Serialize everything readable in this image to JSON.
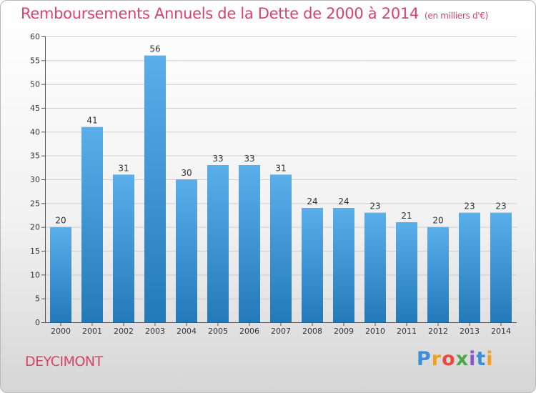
{
  "header": {
    "title": "Remboursements Annuels de la Dette de 2000 à 2014",
    "unit": "(en milliers d'€)"
  },
  "footer": {
    "city": "DEYCIMONT",
    "logo": "Proxiti"
  },
  "colors": {
    "title": "#d9436b",
    "bar_top": "#5aaeea",
    "bar_bottom": "#2479b8"
  },
  "chart_data": {
    "type": "bar",
    "title": "Remboursements Annuels de la Dette de 2000 à 2014",
    "xlabel": "",
    "ylabel": "",
    "ylim": [
      0,
      60
    ],
    "yticks": [
      0,
      5,
      10,
      15,
      20,
      25,
      30,
      35,
      40,
      45,
      50,
      55,
      60
    ],
    "grid": true,
    "categories": [
      "2000",
      "2001",
      "2002",
      "2003",
      "2004",
      "2005",
      "2006",
      "2007",
      "2008",
      "2009",
      "2010",
      "2011",
      "2012",
      "2013",
      "2014"
    ],
    "values": [
      20,
      41,
      31,
      56,
      30,
      33,
      33,
      31,
      24,
      24,
      23,
      21,
      20,
      23,
      23
    ]
  }
}
